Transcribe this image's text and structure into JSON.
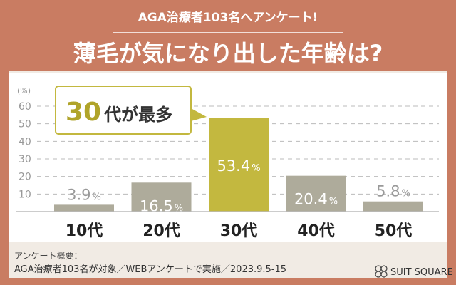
{
  "header": {
    "subtitle": "AGA治療者103名へアンケート!",
    "title": "薄毛が気になり出した年齢は?"
  },
  "callout": {
    "highlight": "30",
    "text": "代が最多"
  },
  "footer": {
    "label": "アンケート概要：",
    "detail": "AGA治療者103名が対象／WEBアンケートで実施／2023.9.5-15",
    "brand": "SUIT SQUARE"
  },
  "colors": {
    "background": "#c97c62",
    "panel": "#f1ebe4",
    "bar": "#aeab9b",
    "highlight_bar": "#c3b83f",
    "callout_border": "#c3b83f"
  },
  "chart_data": {
    "type": "bar",
    "title": "薄毛が気になり出した年齢は?",
    "ylabel": "(%)",
    "ylim": [
      0,
      60
    ],
    "yticks": [
      10,
      20,
      30,
      40,
      50,
      60
    ],
    "grid": true,
    "categories": [
      "10代",
      "20代",
      "30代",
      "40代",
      "50代"
    ],
    "values": [
      3.9,
      16.5,
      53.4,
      20.4,
      5.8
    ],
    "labels": [
      "3.9",
      "16.5",
      "53.4",
      "20.4",
      "5.8"
    ],
    "unit": "%",
    "highlight_index": 2
  }
}
